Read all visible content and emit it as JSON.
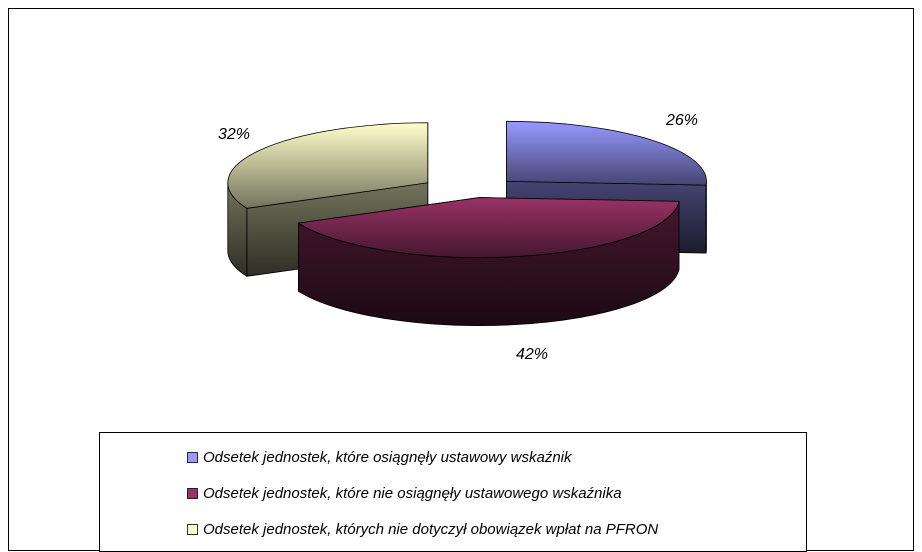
{
  "chart_data": {
    "type": "pie",
    "categories": [
      "Odsetek jednostek, które osiągnęły ustawowy wskaźnik",
      "Odsetek jednostek, które nie osiągnęły ustawowego wskaźnika",
      "Odsetek jednostek, których nie dotyczył obowiązek wpłat na PFRON"
    ],
    "values": [
      26,
      42,
      32
    ],
    "value_labels": [
      "26%",
      "42%",
      "32%"
    ],
    "colors": [
      "#9999ff",
      "#993366",
      "#ffffcc"
    ],
    "legend": "bottom"
  }
}
